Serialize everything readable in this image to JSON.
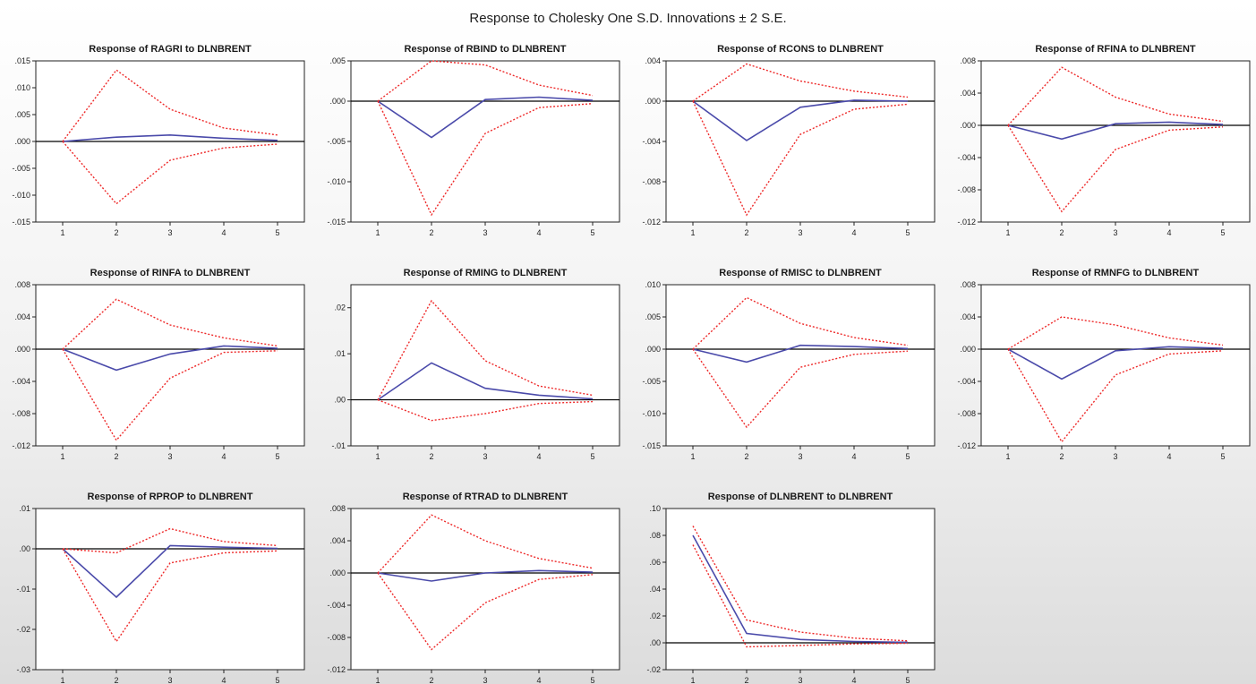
{
  "title": "Response to Cholesky One S.D. Innovations ± 2 S.E.",
  "colors": {
    "response": "#4a4aaa",
    "band": "#ee2a2a",
    "zero": "#000000"
  },
  "chart_data": [
    {
      "type": "line",
      "title": "Response of RAGRI to DLNBRENT",
      "x": [
        1,
        2,
        3,
        4,
        5
      ],
      "ylim": [
        -0.015,
        0.015
      ],
      "yticks": [
        ".015",
        ".010",
        ".005",
        ".000",
        "-.005",
        "-.010",
        "-.015"
      ],
      "series": [
        {
          "values": [
            0.0,
            0.0008,
            0.0012,
            0.0006,
            0.0002
          ]
        },
        {
          "values": [
            0.0,
            0.0133,
            0.006,
            0.0025,
            0.0012
          ]
        },
        {
          "values": [
            0.0,
            -0.0116,
            -0.0035,
            -0.0012,
            -0.0005
          ]
        }
      ]
    },
    {
      "type": "line",
      "title": "Response of RBIND to DLNBRENT",
      "x": [
        1,
        2,
        3,
        4,
        5
      ],
      "ylim": [
        -0.015,
        0.005
      ],
      "yticks": [
        ".005",
        ".000",
        "-.005",
        "-.010",
        "-.015"
      ],
      "series": [
        {
          "values": [
            0.0,
            -0.0045,
            0.0002,
            0.0005,
            0.0001
          ]
        },
        {
          "values": [
            0.0,
            0.005,
            0.0045,
            0.002,
            0.0007
          ]
        },
        {
          "values": [
            0.0,
            -0.0141,
            -0.004,
            -0.0008,
            -0.0003
          ]
        }
      ]
    },
    {
      "type": "line",
      "title": "Response of RCONS to DLNBRENT",
      "x": [
        1,
        2,
        3,
        4,
        5
      ],
      "ylim": [
        -0.012,
        0.004
      ],
      "yticks": [
        ".004",
        ".000",
        "-.004",
        "-.008",
        "-.012"
      ],
      "series": [
        {
          "values": [
            0.0,
            -0.0039,
            -0.0006,
            0.0001,
            0.0
          ]
        },
        {
          "values": [
            0.0,
            0.0037,
            0.002,
            0.001,
            0.0004
          ]
        },
        {
          "values": [
            0.0,
            -0.0113,
            -0.0033,
            -0.0008,
            -0.0003
          ]
        }
      ]
    },
    {
      "type": "line",
      "title": "Response of RFINA to DLNBRENT",
      "x": [
        1,
        2,
        3,
        4,
        5
      ],
      "ylim": [
        -0.012,
        0.008
      ],
      "yticks": [
        ".008",
        ".004",
        ".000",
        "-.004",
        "-.008",
        "-.012"
      ],
      "series": [
        {
          "values": [
            0.0,
            -0.0017,
            0.0002,
            0.0004,
            0.0001
          ]
        },
        {
          "values": [
            0.0,
            0.0072,
            0.0035,
            0.0014,
            0.0005
          ]
        },
        {
          "values": [
            0.0,
            -0.0107,
            -0.003,
            -0.0006,
            -0.0002
          ]
        }
      ]
    },
    {
      "type": "line",
      "title": "Response of RINFA to DLNBRENT",
      "x": [
        1,
        2,
        3,
        4,
        5
      ],
      "ylim": [
        -0.012,
        0.008
      ],
      "yticks": [
        ".008",
        ".004",
        ".000",
        "-.004",
        "-.008",
        "-.012"
      ],
      "series": [
        {
          "values": [
            0.0,
            -0.0026,
            -0.0006,
            0.0004,
            0.0001
          ]
        },
        {
          "values": [
            0.0,
            0.0062,
            0.003,
            0.0014,
            0.0004
          ]
        },
        {
          "values": [
            0.0,
            -0.0113,
            -0.0036,
            -0.0004,
            -0.0002
          ]
        }
      ]
    },
    {
      "type": "line",
      "title": "Response of RMING to DLNBRENT",
      "x": [
        1,
        2,
        3,
        4,
        5
      ],
      "ylim": [
        -0.01,
        0.025
      ],
      "yticks": [
        ".02",
        ".01",
        ".00",
        "-.01"
      ],
      "series": [
        {
          "values": [
            0.0,
            0.008,
            0.0025,
            0.001,
            0.0002
          ]
        },
        {
          "values": [
            0.0,
            0.0215,
            0.0085,
            0.003,
            0.001
          ]
        },
        {
          "values": [
            0.0,
            -0.0045,
            -0.003,
            -0.0008,
            -0.0004
          ]
        }
      ]
    },
    {
      "type": "line",
      "title": "Response of RMISC to DLNBRENT",
      "x": [
        1,
        2,
        3,
        4,
        5
      ],
      "ylim": [
        -0.015,
        0.01
      ],
      "yticks": [
        ".010",
        ".005",
        ".000",
        "-.005",
        "-.010",
        "-.015"
      ],
      "series": [
        {
          "values": [
            0.0,
            -0.002,
            0.0006,
            0.0004,
            0.0001
          ]
        },
        {
          "values": [
            0.0,
            0.008,
            0.004,
            0.0018,
            0.0006
          ]
        },
        {
          "values": [
            0.0,
            -0.0121,
            -0.0028,
            -0.0008,
            -0.0003
          ]
        }
      ]
    },
    {
      "type": "line",
      "title": "Response of RMNFG to DLNBRENT",
      "x": [
        1,
        2,
        3,
        4,
        5
      ],
      "ylim": [
        -0.012,
        0.008
      ],
      "yticks": [
        ".008",
        ".004",
        ".000",
        "-.004",
        "-.008",
        "-.012"
      ],
      "series": [
        {
          "values": [
            0.0,
            -0.0037,
            -0.0002,
            0.0003,
            0.0001
          ]
        },
        {
          "values": [
            0.0,
            0.004,
            0.003,
            0.0014,
            0.0005
          ]
        },
        {
          "values": [
            0.0,
            -0.0115,
            -0.0032,
            -0.0006,
            -0.0002
          ]
        }
      ]
    },
    {
      "type": "line",
      "title": "Response of RPROP to DLNBRENT",
      "x": [
        1,
        2,
        3,
        4,
        5
      ],
      "ylim": [
        -0.03,
        0.01
      ],
      "yticks": [
        ".01",
        ".00",
        "-.01",
        "-.02",
        "-.03"
      ],
      "series": [
        {
          "values": [
            0.0,
            -0.012,
            0.0008,
            0.0004,
            0.0001
          ]
        },
        {
          "values": [
            0.0,
            -0.001,
            0.005,
            0.0018,
            0.0008
          ]
        },
        {
          "values": [
            0.0,
            -0.023,
            -0.0035,
            -0.001,
            -0.0005
          ]
        }
      ]
    },
    {
      "type": "line",
      "title": "Response of RTRAD to DLNBRENT",
      "x": [
        1,
        2,
        3,
        4,
        5
      ],
      "ylim": [
        -0.012,
        0.008
      ],
      "yticks": [
        ".008",
        ".004",
        ".000",
        "-.004",
        "-.008",
        "-.012"
      ],
      "series": [
        {
          "values": [
            0.0,
            -0.001,
            0.0,
            0.0003,
            0.0001
          ]
        },
        {
          "values": [
            0.0,
            0.0072,
            0.004,
            0.0018,
            0.0006
          ]
        },
        {
          "values": [
            0.0,
            -0.0095,
            -0.0037,
            -0.0008,
            -0.0002
          ]
        }
      ]
    },
    {
      "type": "line",
      "title": "Response of DLNBRENT to DLNBRENT",
      "x": [
        1,
        2,
        3,
        4,
        5
      ],
      "ylim": [
        -0.02,
        0.1
      ],
      "yticks": [
        ".10",
        ".08",
        ".06",
        ".04",
        ".02",
        ".00",
        "-.02"
      ],
      "series": [
        {
          "values": [
            0.08,
            0.007,
            0.0025,
            0.001,
            0.0004
          ]
        },
        {
          "values": [
            0.087,
            0.017,
            0.008,
            0.0035,
            0.0015
          ]
        },
        {
          "values": [
            0.073,
            -0.003,
            -0.002,
            -0.0008,
            -0.0003
          ]
        }
      ]
    }
  ]
}
